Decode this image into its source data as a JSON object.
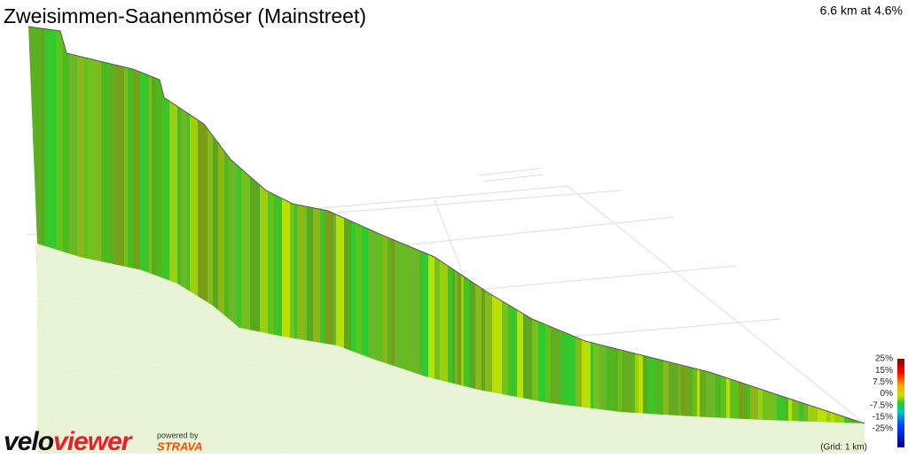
{
  "header": {
    "title": "Zweisimmen-Saanenmöser (Mainstreet)",
    "stats": "6.6 km at 4.6%"
  },
  "legend": {
    "labels": [
      "25%",
      "15%",
      "7.5%",
      "0%",
      "-7.5%",
      "-15%",
      "-25%"
    ],
    "grid_note": "(Grid: 1 km)"
  },
  "branding": {
    "velo": "velo",
    "viewer": "viewer",
    "powered": "powered by",
    "strava": "STRAVA"
  }
}
